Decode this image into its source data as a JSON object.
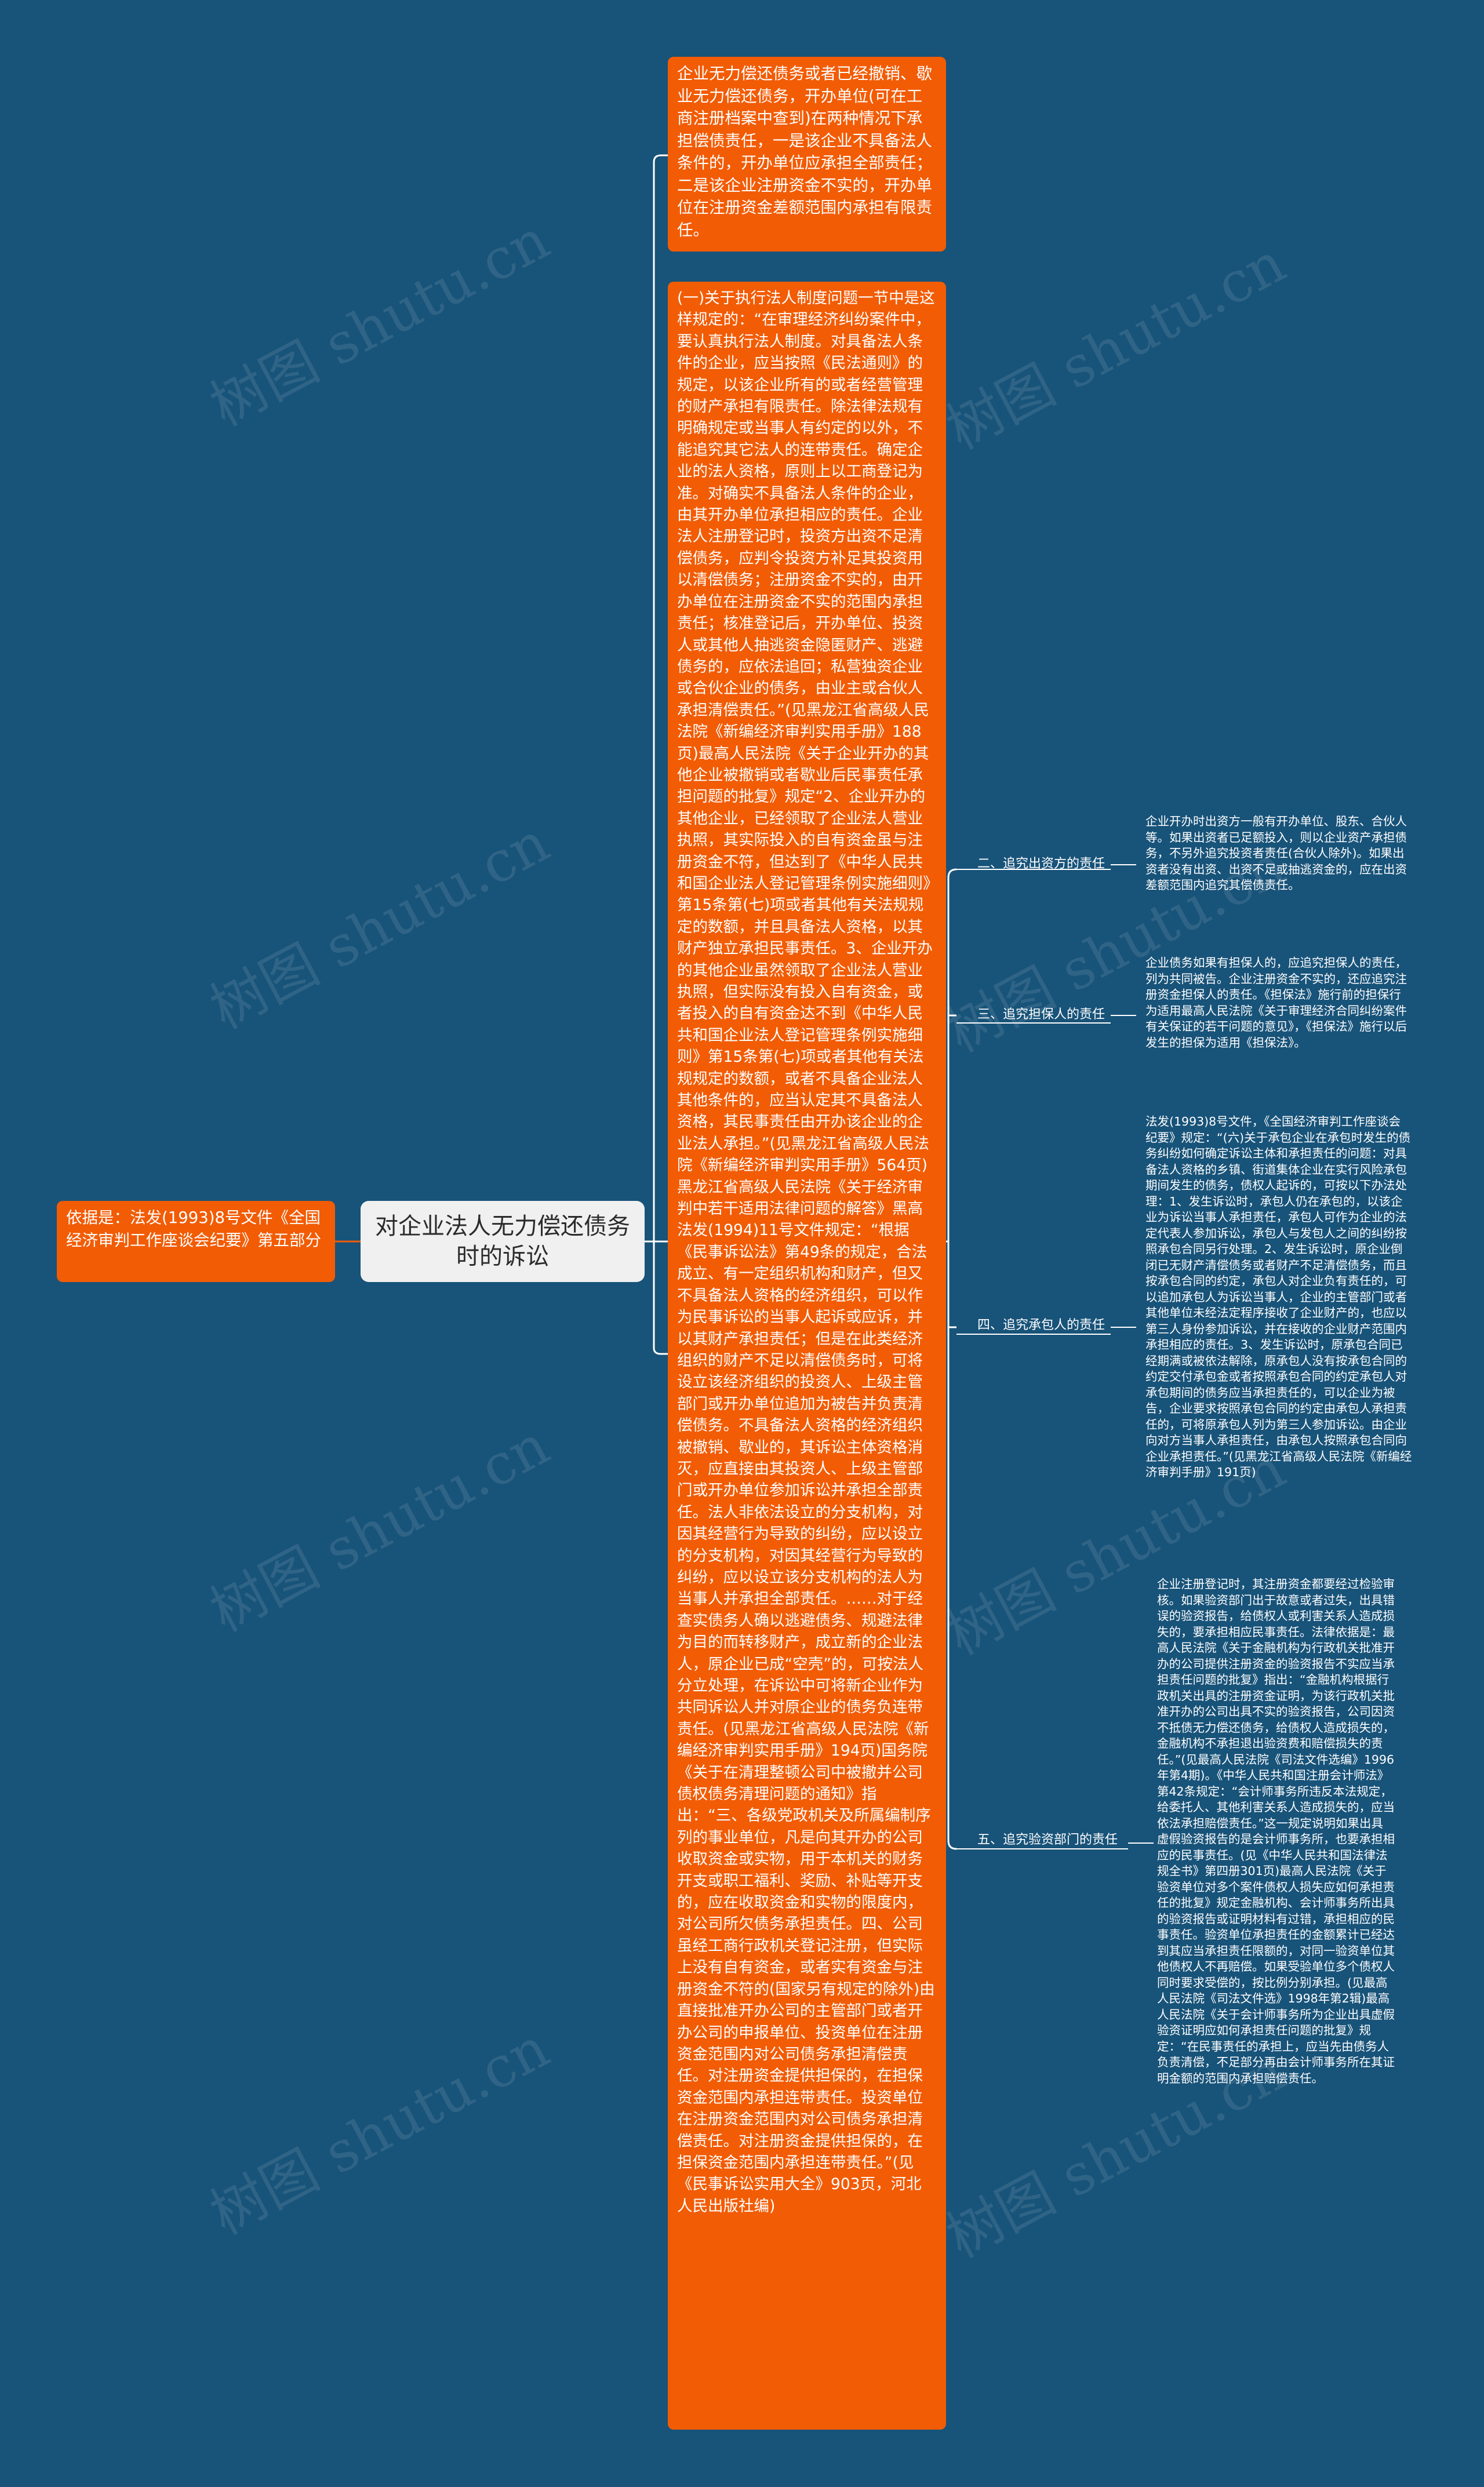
{
  "root": {
    "title": "对企业法人无力偿还债务时的诉讼"
  },
  "left_note": {
    "text": "依据是：法发(1993)8号文件《全国经济审判工作座谈会纪要》第五部分"
  },
  "right_branches": [
    {
      "text": "企业无力偿还债务或者已经撤销、歇业无力偿还债务，开办单位(可在工商注册档案中查到)在两种情况下承担偿债责任，一是该企业不具备法人条件的，开办单位应承担全部责任；二是该企业注册资金不实的，开办单位在注册资金差额范围内承担有限责任。"
    },
    {
      "text": "(一)关于执行法人制度问题一节中是这样规定的：“在审理经济纠纷案件中，要认真执行法人制度。对具备法人条件的企业，应当按照《民法通则》的规定，以该企业所有的或者经营管理的财产承担有限责任。除法律法规有明确规定或当事人有约定的以外，不能追究其它法人的连带责任。确定企业的法人资格，原则上以工商登记为准。对确实不具备法人条件的企业，由其开办单位承担相应的责任。企业法人注册登记时，投资方出资不足清偿债务，应判令投资方补足其投资用以清偿债务；注册资金不实的，由开办单位在注册资金不实的范围内承担责任；核准登记后，开办单位、投资人或其他人抽逃资金隐匿财产、逃避债务的，应依法追回；私营独资企业或合伙企业的债务，由业主或合伙人承担清偿责任。”(见黑龙江省高级人民法院《新编经济审判实用手册》188页)最高人民法院《关于企业开办的其他企业被撤销或者歇业后民事责任承担问题的批复》规定“2、企业开办的其他企业，已经领取了企业法人营业执照，其实际投入的自有资金虽与注册资金不符，但达到了《中华人民共和国企业法人登记管理条例实施细则》第15条第(七)项或者其他有关法规规定的数额，并且具备法人资格，以其财产独立承担民事责任。3、企业开办的其他企业虽然领取了企业法人营业执照，但实际没有投入自有资金，或者投入的自有资金达不到《中华人民共和国企业法人登记管理条例实施细则》第15条第(七)项或者其他有关法规规定的数额，或者不具备企业法人其他条件的，应当认定其不具备法人资格，其民事责任由开办该企业的企业法人承担。”(见黑龙江省高级人民法院《新编经济审判实用手册》564页)黑龙江省高级人民法院《关于经济审判中若干适用法律问题的解答》黑高法发(1994)11号文件规定：“根据《民事诉讼法》第49条的规定，合法成立、有一定组织机构和财产，但又不具备法人资格的经济组织，可以作为民事诉讼的当事人起诉或应诉，并以其财产承担责任；但是在此类经济组织的财产不足以清偿债务时，可将设立该经济组织的投资人、上级主管部门或开办单位追加为被告并负责清偿债务。不具备法人资格的经济组织被撤销、歇业的，其诉讼主体资格消灭，应直接由其投资人、上级主管部门或开办单位参加诉讼并承担全部责任。法人非依法设立的分支机构，对因其经营行为导致的纠纷，应以设立的分支机构，对因其经营行为导致的纠纷，应以设立该分支机构的法人为当事人并承担全部责任。……对于经查实债务人确以逃避债务、规避法律为目的而转移财产，成立新的企业法人，原企业已成“空壳”的，可按法人分立处理，在诉讼中可将新企业作为共同诉讼人并对原企业的债务负连带责任。(见黑龙江省高级人民法院《新编经济审判实用手册》194页)国务院《关于在清理整顿公司中被撤并公司债权债务清理问题的通知》指出：“三、各级党政机关及所属编制序列的事业单位，凡是向其开办的公司收取资金或实物，用于本机关的财务开支或职工福利、奖励、补贴等开支的，应在收取资金和实物的限度内，对公司所欠债务承担责任。四、公司虽经工商行政机关登记注册，但实际上没有自有资金，或者实有资金与注册资金不符的(国家另有规定的除外)由直接批准开办公司的主管部门或者开办公司的申报单位、投资单位在注册资金范围内对公司债务承担清偿责任。对注册资金提供担保的，在担保资金范围内承担连带责任。投资单位在注册资金范围内对公司债务承担清偿责任。对注册资金提供担保的，在担保资金范围内承担连带责任。”(见《民事诉讼实用大全》903页，河北人民出版社编)"
    }
  ],
  "sub_branches": [
    {
      "label": "二、追究出资方的责任",
      "content": "企业开办时出资方一般有开办单位、股东、合伙人等。如果出资者已足额投入，则以企业资产承担债务，不另外追究投资者责任(合伙人除外)。如果出资者没有出资、出资不足或抽逃资金的，应在出资差额范围内追究其偿债责任。"
    },
    {
      "label": "三、追究担保人的责任",
      "content": "企业债务如果有担保人的，应追究担保人的责任，列为共同被告。企业注册资金不实的，还应追究注册资金担保人的责任。《担保法》施行前的担保行为适用最高人民法院《关于审理经济合同纠纷案件有关保证的若干问题的意见》，《担保法》施行以后发生的担保为适用《担保法》。"
    },
    {
      "label": "四、追究承包人的责任",
      "content": "法发(1993)8号文件，《全国经济审判工作座谈会纪要》规定：“(六)关于承包企业在承包时发生的债务纠纷如何确定诉讼主体和承担责任的问题：对具备法人资格的乡镇、街道集体企业在实行风险承包期间发生的债务，债权人起诉的，可按以下办法处理：1、发生诉讼时，承包人仍在承包的，以该企业为诉讼当事人承担责任，承包人可作为企业的法定代表人参加诉讼，承包人与发包人之间的纠纷按照承包合同另行处理。2、发生诉讼时，原企业倒闭已无财产清偿债务或者财产不足清偿债务，而且按承包合同的约定，承包人对企业负有责任的，可以追加承包人为诉讼当事人，企业的主管部门或者其他单位未经法定程序接收了企业财产的，也应以第三人身份参加诉讼，并在接收的企业财产范围内承担相应的责任。3、发生诉讼时，原承包合同已经期满或被依法解除，原承包人没有按承包合同的约定交付承包金或者按照承包合同的约定承包人对承包期间的债务应当承担责任的，可以企业为被告，企业要求按照承包合同的约定由承包人承担责任的，可将原承包人列为第三人参加诉讼。由企业向对方当事人承担责任，由承包人按照承包合同向企业承担责任。”(见黑龙江省高级人民法院《新编经济审判手册》191页)"
    },
    {
      "label": "五、追究验资部门的责任",
      "content": "企业注册登记时，其注册资金都要经过检验审核。如果验资部门出于故意或者过失，出具错误的验资报告，给债权人或利害关系人造成损失的，要承担相应民事责任。法律依据是：最高人民法院《关于金融机构为行政机关批准开办的公司提供注册资金的验资报告不实应当承担责任问题的批复》指出：“金融机构根据行政机关出具的注册资金证明，为该行政机关批准开办的公司出具不实的验资报告，公司因资不抵债无力偿还债务，给债权人造成损失的，金融机构不承担退出验资费和赔偿损失的责任。”(见最高人民法院《司法文件选编》1996年第4期)。《中华人民共和国注册会计师法》第42条规定：“会计师事务所违反本法规定，给委托人、其他利害关系人造成损失的，应当依法承担赔偿责任。”这一规定说明如果出具虚假验资报告的是会计师事务所，也要承担相应的民事责任。(见《中华人民共和国法律法规全书》第四册301页)最高人民法院《关于验资单位对多个案件债权人损失应如何承担责任的批复》规定金融机构、会计师事务所出具的验资报告或证明材料有过错，承担相应的民事责任。验资单位承担责任的金额累计已经达到其应当承担责任限额的，对同一验资单位其他债权人不再赔偿。如果受验单位多个债权人同时要求受偿的，按比例分别承担。(见最高人民法院《司法文件选》1998年第2辑)最高人民法院《关于会计师事务所为企业出具虚假验资证明应如何承担责任问题的批复》规定：“在民事责任的承担上，应当先由债务人负责清偿，不足部分再由会计师事务所在其证明金额的范围内承担赔偿责任。"
    }
  ],
  "watermark": "树图 shutu.cn"
}
